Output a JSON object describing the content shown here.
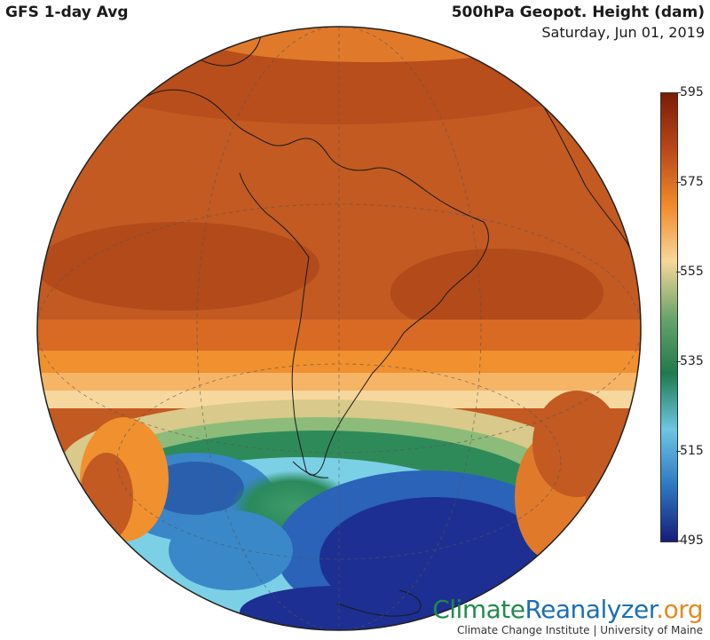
{
  "header": {
    "left_title": "GFS 1-day Avg",
    "right_title": "500hPa Geopot. Height (dam)",
    "date": "Saturday, Jun 01, 2019"
  },
  "colorbar": {
    "labels": [
      "595",
      "575",
      "555",
      "535",
      "515",
      "495"
    ],
    "min": 495,
    "max": 595,
    "colors": [
      "#7a1c06",
      "#b8481a",
      "#f08a2a",
      "#f7d79a",
      "#6aa46a",
      "#1f7a4e",
      "#6dc6e3",
      "#2f78c2",
      "#161d7a"
    ]
  },
  "map": {
    "projection": "orthographic",
    "center": "South America"
  },
  "branding": {
    "name_part1": "Climate",
    "name_part2": "Reanalyzer",
    "name_part3": ".org",
    "subtitle": "Climate Change Institute | University of Maine"
  }
}
